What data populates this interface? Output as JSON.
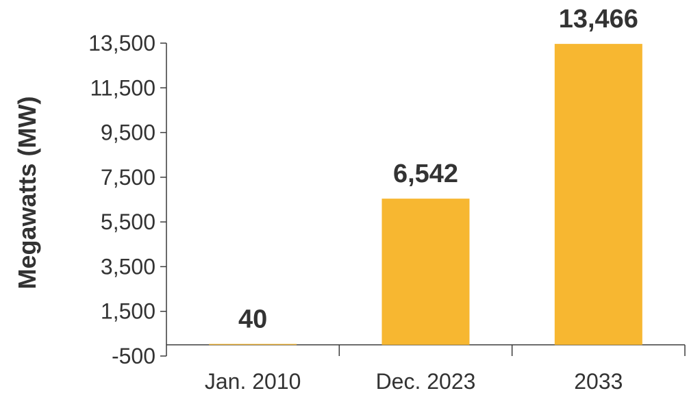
{
  "chart_data": {
    "type": "bar",
    "ylabel": "Megawatts (MW)",
    "categories": [
      "Jan. 2010",
      "Dec. 2023",
      "2033"
    ],
    "values": [
      40,
      6542,
      13466
    ],
    "value_labels": [
      "40",
      "6,542",
      "13,466"
    ],
    "yticks": [
      -500,
      1500,
      3500,
      5500,
      7500,
      9500,
      11500,
      13500
    ],
    "ytick_labels": [
      "-500",
      "1,500",
      "3,500",
      "5,500",
      "7,500",
      "9,500",
      "11,500",
      "13,500"
    ],
    "ylim": [
      -500,
      13500
    ],
    "grid": false,
    "legend": "none",
    "colors": {
      "bar": "#F7B731",
      "axis": "#3a3a3a",
      "text": "#333333",
      "label": "#333333"
    }
  }
}
